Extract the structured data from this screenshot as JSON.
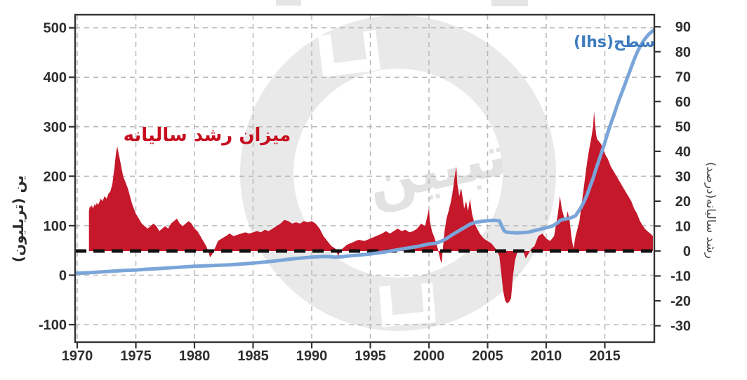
{
  "watermark": {
    "text": "تبیین"
  },
  "labels": {
    "red_series_label": "میزان رشد سالیانه",
    "blue_series_label": "سطح(Ihs)",
    "left_axis_title": "ین (تریلیون)",
    "right_axis_title": "رشد سالیانه(درصد)"
  },
  "colors": {
    "area_red": "#c5182b",
    "line_blue": "#7aa5d8",
    "label_red": "#c60d1f",
    "label_blue": "#3e7bbf",
    "grid": "#b8b8b8",
    "frame": "#333333",
    "zero_line": "#111111",
    "tick_text": "#2e2e2e",
    "watermark_gray": "#e9e9e9"
  },
  "chart_data": {
    "type": "area",
    "subtype": "dual-axis area + line",
    "x_ticks": [
      1970,
      1975,
      1980,
      1985,
      1990,
      1995,
      2000,
      2005,
      2010,
      2015
    ],
    "x_range": [
      1969.8,
      2019.2
    ],
    "left_axis": {
      "label": "ین (تریلیون)",
      "ticks": [
        -100,
        0,
        100,
        200,
        300,
        400,
        500
      ],
      "range": [
        -135,
        525
      ]
    },
    "right_axis": {
      "label": "رشد سالیانه(درصد)",
      "ticks": [
        -30,
        -20,
        -10,
        0,
        10,
        20,
        30,
        40,
        50,
        60,
        70,
        80,
        90
      ],
      "range": [
        -37,
        95
      ]
    },
    "grid": "dashed, vertical at 5-year ticks, horizontal at 100-unit left ticks",
    "zero_line": {
      "axis": "right",
      "value": 0,
      "style": "black dashed"
    },
    "series": [
      {
        "name": "میزان رشد سالیانه",
        "type": "area",
        "axis": "right",
        "color": "#c5182b",
        "points": [
          [
            1971.0,
            16
          ],
          [
            1971.08,
            18
          ],
          [
            1971.17,
            17.5
          ],
          [
            1971.25,
            18.5
          ],
          [
            1971.33,
            17
          ],
          [
            1971.42,
            18
          ],
          [
            1971.5,
            19
          ],
          [
            1971.58,
            18
          ],
          [
            1971.67,
            19.5
          ],
          [
            1971.75,
            18.5
          ],
          [
            1971.83,
            19
          ],
          [
            1971.92,
            20
          ],
          [
            1972.0,
            21
          ],
          [
            1972.17,
            20
          ],
          [
            1972.33,
            22
          ],
          [
            1972.5,
            21
          ],
          [
            1972.67,
            23
          ],
          [
            1972.83,
            24
          ],
          [
            1973.0,
            27
          ],
          [
            1973.08,
            30
          ],
          [
            1973.17,
            33
          ],
          [
            1973.25,
            37
          ],
          [
            1973.33,
            40
          ],
          [
            1973.42,
            42
          ],
          [
            1973.5,
            40
          ],
          [
            1973.58,
            38
          ],
          [
            1973.67,
            36
          ],
          [
            1973.75,
            34
          ],
          [
            1973.83,
            32
          ],
          [
            1973.92,
            30
          ],
          [
            1974.0,
            29
          ],
          [
            1974.17,
            27
          ],
          [
            1974.33,
            25
          ],
          [
            1974.5,
            22
          ],
          [
            1974.67,
            19
          ],
          [
            1974.83,
            17
          ],
          [
            1975.0,
            15
          ],
          [
            1975.25,
            13
          ],
          [
            1975.5,
            11
          ],
          [
            1975.75,
            10
          ],
          [
            1976.0,
            9
          ],
          [
            1976.25,
            10
          ],
          [
            1976.5,
            11
          ],
          [
            1976.75,
            10
          ],
          [
            1977.0,
            8
          ],
          [
            1977.25,
            9
          ],
          [
            1977.5,
            10
          ],
          [
            1977.75,
            9
          ],
          [
            1978.0,
            11
          ],
          [
            1978.25,
            12
          ],
          [
            1978.5,
            13
          ],
          [
            1978.75,
            11
          ],
          [
            1979.0,
            10
          ],
          [
            1979.25,
            11
          ],
          [
            1979.5,
            12
          ],
          [
            1979.75,
            11
          ],
          [
            1980.0,
            9
          ],
          [
            1980.25,
            8
          ],
          [
            1980.5,
            6
          ],
          [
            1980.75,
            4
          ],
          [
            1981.0,
            2
          ],
          [
            1981.17,
            0
          ],
          [
            1981.33,
            -2.5
          ],
          [
            1981.5,
            -1.5
          ],
          [
            1981.67,
            0.5
          ],
          [
            1981.83,
            2
          ],
          [
            1982.0,
            4
          ],
          [
            1982.33,
            5
          ],
          [
            1982.67,
            6
          ],
          [
            1983.0,
            7
          ],
          [
            1983.33,
            6
          ],
          [
            1983.67,
            6.5
          ],
          [
            1984.0,
            7
          ],
          [
            1984.33,
            7.5
          ],
          [
            1984.67,
            7
          ],
          [
            1985.0,
            7.5
          ],
          [
            1985.33,
            8
          ],
          [
            1985.67,
            7.5
          ],
          [
            1986.0,
            8.5
          ],
          [
            1986.33,
            8
          ],
          [
            1986.67,
            9
          ],
          [
            1987.0,
            10
          ],
          [
            1987.33,
            11
          ],
          [
            1987.67,
            12.5
          ],
          [
            1988.0,
            12
          ],
          [
            1988.33,
            11
          ],
          [
            1988.67,
            11.5
          ],
          [
            1989.0,
            11
          ],
          [
            1989.33,
            12
          ],
          [
            1989.67,
            11.5
          ],
          [
            1990.0,
            12
          ],
          [
            1990.33,
            11
          ],
          [
            1990.67,
            9
          ],
          [
            1991.0,
            6
          ],
          [
            1991.33,
            4
          ],
          [
            1991.67,
            2
          ],
          [
            1992.0,
            1
          ],
          [
            1992.25,
            -2
          ],
          [
            1992.5,
            0.5
          ],
          [
            1992.75,
            1.5
          ],
          [
            1993.0,
            2.5
          ],
          [
            1993.5,
            3.5
          ],
          [
            1994.0,
            4.5
          ],
          [
            1994.5,
            4
          ],
          [
            1995.0,
            5
          ],
          [
            1995.5,
            6
          ],
          [
            1996.0,
            7
          ],
          [
            1996.33,
            8
          ],
          [
            1996.67,
            7
          ],
          [
            1997.0,
            8
          ],
          [
            1997.33,
            9
          ],
          [
            1997.67,
            8
          ],
          [
            1998.0,
            8.5
          ],
          [
            1998.33,
            7.5
          ],
          [
            1998.67,
            8
          ],
          [
            1999.0,
            9
          ],
          [
            1999.33,
            11
          ],
          [
            1999.67,
            10
          ],
          [
            2000.0,
            17
          ],
          [
            2000.08,
            12
          ],
          [
            2000.25,
            8
          ],
          [
            2000.5,
            5
          ],
          [
            2000.75,
            1
          ],
          [
            2001.0,
            -4
          ],
          [
            2001.08,
            -5
          ],
          [
            2001.17,
            0
          ],
          [
            2001.33,
            8
          ],
          [
            2001.5,
            13
          ],
          [
            2001.67,
            16
          ],
          [
            2001.83,
            19
          ],
          [
            2002.0,
            23
          ],
          [
            2002.17,
            29
          ],
          [
            2002.33,
            34
          ],
          [
            2002.42,
            27
          ],
          [
            2002.58,
            22
          ],
          [
            2002.75,
            25
          ],
          [
            2002.92,
            20
          ],
          [
            2003.0,
            17
          ],
          [
            2003.17,
            20
          ],
          [
            2003.33,
            16
          ],
          [
            2003.5,
            21
          ],
          [
            2003.67,
            15
          ],
          [
            2003.83,
            12
          ],
          [
            2004.0,
            10
          ],
          [
            2004.33,
            7
          ],
          [
            2004.67,
            5
          ],
          [
            2005.0,
            4
          ],
          [
            2005.33,
            3
          ],
          [
            2005.67,
            1
          ],
          [
            2006.0,
            -2
          ],
          [
            2006.17,
            -9
          ],
          [
            2006.33,
            -16
          ],
          [
            2006.5,
            -20
          ],
          [
            2006.67,
            -21
          ],
          [
            2006.83,
            -20.5
          ],
          [
            2007.0,
            -19
          ],
          [
            2007.17,
            -10
          ],
          [
            2007.33,
            -4
          ],
          [
            2007.5,
            -1
          ],
          [
            2007.75,
            0.5
          ],
          [
            2008.0,
            0.5
          ],
          [
            2008.25,
            -3
          ],
          [
            2008.5,
            -1
          ],
          [
            2008.75,
            1
          ],
          [
            2009.0,
            2
          ],
          [
            2009.33,
            6
          ],
          [
            2009.67,
            7
          ],
          [
            2010.0,
            5
          ],
          [
            2010.33,
            4
          ],
          [
            2010.67,
            6
          ],
          [
            2011.0,
            15
          ],
          [
            2011.17,
            22
          ],
          [
            2011.33,
            17
          ],
          [
            2011.5,
            14
          ],
          [
            2011.67,
            12
          ],
          [
            2011.83,
            16
          ],
          [
            2012.0,
            12
          ],
          [
            2012.17,
            5
          ],
          [
            2012.33,
            1
          ],
          [
            2012.5,
            6
          ],
          [
            2012.67,
            9
          ],
          [
            2012.83,
            12
          ],
          [
            2013.0,
            18
          ],
          [
            2013.17,
            24
          ],
          [
            2013.33,
            30
          ],
          [
            2013.5,
            36
          ],
          [
            2013.67,
            41
          ],
          [
            2013.83,
            45
          ],
          [
            2014.0,
            50
          ],
          [
            2014.08,
            56
          ],
          [
            2014.17,
            51
          ],
          [
            2014.25,
            47
          ],
          [
            2014.33,
            45
          ],
          [
            2014.5,
            44
          ],
          [
            2014.67,
            43
          ],
          [
            2014.83,
            41
          ],
          [
            2015.0,
            39
          ],
          [
            2015.25,
            37
          ],
          [
            2015.5,
            34
          ],
          [
            2015.75,
            32
          ],
          [
            2016.0,
            30
          ],
          [
            2016.25,
            28
          ],
          [
            2016.5,
            26
          ],
          [
            2016.75,
            24
          ],
          [
            2017.0,
            22
          ],
          [
            2017.25,
            20
          ],
          [
            2017.5,
            17
          ],
          [
            2017.75,
            15
          ],
          [
            2018.0,
            12
          ],
          [
            2018.25,
            10
          ],
          [
            2018.5,
            8.5
          ],
          [
            2018.75,
            7.5
          ],
          [
            2019.0,
            6.5
          ],
          [
            2019.1,
            6
          ]
        ]
      },
      {
        "name": "سطح(Ihs)",
        "type": "line",
        "axis": "left",
        "color": "#7aa5d8",
        "points": [
          [
            1970.0,
            4
          ],
          [
            1971,
            5
          ],
          [
            1972,
            6.5
          ],
          [
            1973,
            8
          ],
          [
            1974,
            9.5
          ],
          [
            1975,
            10.5
          ],
          [
            1976,
            12
          ],
          [
            1977,
            13.5
          ],
          [
            1978,
            15
          ],
          [
            1979,
            16.5
          ],
          [
            1980,
            18
          ],
          [
            1981,
            19
          ],
          [
            1982,
            20
          ],
          [
            1983,
            21
          ],
          [
            1984,
            22.5
          ],
          [
            1985,
            24.5
          ],
          [
            1986,
            26.5
          ],
          [
            1987,
            29
          ],
          [
            1988,
            32
          ],
          [
            1989,
            34.5
          ],
          [
            1990,
            36.5
          ],
          [
            1991,
            38
          ],
          [
            1991.5,
            37.5
          ],
          [
            1992,
            36.5
          ],
          [
            1992.5,
            37
          ],
          [
            1993,
            38.5
          ],
          [
            1994,
            40.5
          ],
          [
            1995,
            43
          ],
          [
            1996,
            46
          ],
          [
            1997,
            50
          ],
          [
            1998,
            54
          ],
          [
            1999,
            58
          ],
          [
            2000,
            63
          ],
          [
            2000.5,
            64
          ],
          [
            2001,
            68
          ],
          [
            2001.5,
            74
          ],
          [
            2002,
            82
          ],
          [
            2002.5,
            89
          ],
          [
            2003,
            96
          ],
          [
            2003.5,
            103
          ],
          [
            2004,
            107
          ],
          [
            2004.5,
            109
          ],
          [
            2005,
            110
          ],
          [
            2005.5,
            111
          ],
          [
            2006,
            110
          ],
          [
            2006.2,
            100
          ],
          [
            2006.4,
            90
          ],
          [
            2006.6,
            87
          ],
          [
            2007,
            86
          ],
          [
            2007.5,
            85.5
          ],
          [
            2008,
            86
          ],
          [
            2008.5,
            87
          ],
          [
            2009,
            90
          ],
          [
            2009.5,
            93
          ],
          [
            2010,
            96
          ],
          [
            2010.5,
            99
          ],
          [
            2011,
            106
          ],
          [
            2011.2,
            111
          ],
          [
            2011.5,
            113
          ],
          [
            2012,
            115
          ],
          [
            2012.5,
            120
          ],
          [
            2013,
            138
          ],
          [
            2013.25,
            150
          ],
          [
            2013.5,
            163
          ],
          [
            2013.75,
            180
          ],
          [
            2014,
            196
          ],
          [
            2014.25,
            215
          ],
          [
            2014.5,
            232
          ],
          [
            2014.75,
            250
          ],
          [
            2015,
            268
          ],
          [
            2015.25,
            288
          ],
          [
            2015.5,
            306
          ],
          [
            2015.75,
            322
          ],
          [
            2016,
            340
          ],
          [
            2016.25,
            357
          ],
          [
            2016.5,
            372
          ],
          [
            2016.75,
            388
          ],
          [
            2017,
            404
          ],
          [
            2017.25,
            420
          ],
          [
            2017.5,
            436
          ],
          [
            2017.75,
            450
          ],
          [
            2018,
            462
          ],
          [
            2018.25,
            472
          ],
          [
            2018.5,
            480
          ],
          [
            2018.75,
            487
          ],
          [
            2019,
            492
          ],
          [
            2019.15,
            495
          ]
        ]
      }
    ]
  }
}
